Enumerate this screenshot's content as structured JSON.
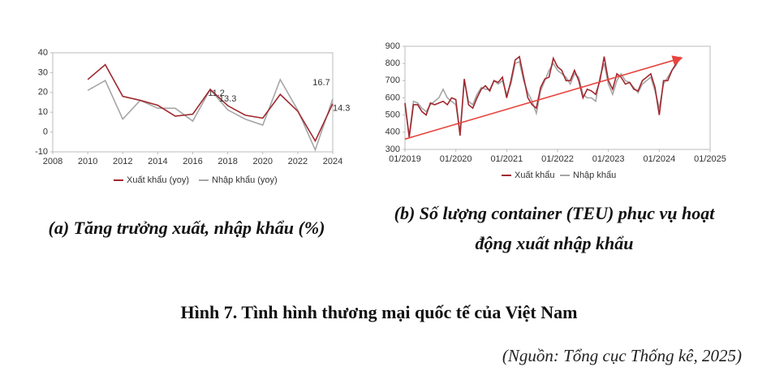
{
  "chart_data": [
    {
      "type": "line",
      "caption": "(a) Tăng trưởng xuất, nhập khẩu (%)",
      "x": [
        2010,
        2011,
        2012,
        2013,
        2014,
        2015,
        2016,
        2017,
        2018,
        2019,
        2020,
        2021,
        2022,
        2023,
        2024
      ],
      "series": [
        {
          "name": "Xuất khẩu (yoy)",
          "color": "#a0282e",
          "values": [
            26.5,
            34,
            18,
            16,
            13.5,
            8,
            9,
            21.5,
            13.3,
            8.5,
            7,
            19,
            10.5,
            -4.5,
            14.3
          ]
        },
        {
          "name": "Nhập khẩu (yoy)",
          "color": "#a6a6a6",
          "values": [
            21,
            26,
            6.5,
            16,
            12,
            12,
            5.5,
            21.5,
            11.2,
            6.5,
            3.5,
            26.5,
            11,
            -9,
            16.7
          ]
        }
      ],
      "data_labels_at": [
        2018,
        2024
      ],
      "xlim": [
        2008,
        2024
      ],
      "xticks": [
        2008,
        2010,
        2012,
        2014,
        2016,
        2018,
        2020,
        2022,
        2024
      ],
      "ylim": [
        -10,
        40
      ],
      "yticks": [
        -10,
        0,
        10,
        20,
        30,
        40
      ],
      "grid": false
    },
    {
      "type": "line",
      "caption": "(b) Số lượng container (TEU) phục vụ hoạt động xuất nhập khẩu",
      "x": [
        "01/2019",
        "02/2019",
        "03/2019",
        "04/2019",
        "05/2019",
        "06/2019",
        "07/2019",
        "08/2019",
        "09/2019",
        "10/2019",
        "11/2019",
        "12/2019",
        "01/2020",
        "02/2020",
        "03/2020",
        "04/2020",
        "05/2020",
        "06/2020",
        "07/2020",
        "08/2020",
        "09/2020",
        "10/2020",
        "11/2020",
        "12/2020",
        "01/2021",
        "02/2021",
        "03/2021",
        "04/2021",
        "05/2021",
        "06/2021",
        "07/2021",
        "08/2021",
        "09/2021",
        "10/2021",
        "11/2021",
        "12/2021",
        "01/2022",
        "02/2022",
        "03/2022",
        "04/2022",
        "05/2022",
        "06/2022",
        "07/2022",
        "08/2022",
        "09/2022",
        "10/2022",
        "11/2022",
        "12/2022",
        "01/2023",
        "02/2023",
        "03/2023",
        "04/2023",
        "05/2023",
        "06/2023",
        "07/2023",
        "08/2023",
        "09/2023",
        "10/2023",
        "11/2023",
        "12/2023",
        "01/2024",
        "02/2024",
        "03/2024",
        "04/2024",
        "05/2024",
        "06/2024"
      ],
      "series": [
        {
          "name": "Xuất khẩu",
          "color": "#a0282e",
          "values": [
            570,
            370,
            560,
            560,
            520,
            500,
            570,
            560,
            570,
            580,
            560,
            600,
            590,
            380,
            710,
            560,
            540,
            600,
            650,
            670,
            640,
            700,
            690,
            720,
            600,
            700,
            820,
            840,
            720,
            600,
            560,
            540,
            660,
            710,
            720,
            830,
            780,
            760,
            700,
            700,
            760,
            700,
            600,
            650,
            640,
            620,
            700,
            840,
            700,
            650,
            740,
            720,
            680,
            690,
            650,
            640,
            700,
            720,
            740,
            660,
            500,
            700,
            700,
            760,
            800,
            830
          ]
        },
        {
          "name": "Nhập khẩu",
          "color": "#a6a6a6",
          "values": [
            560,
            380,
            580,
            570,
            540,
            520,
            560,
            580,
            600,
            650,
            600,
            580,
            560,
            400,
            700,
            580,
            560,
            620,
            660,
            650,
            650,
            700,
            680,
            700,
            620,
            680,
            800,
            810,
            700,
            630,
            580,
            510,
            640,
            700,
            760,
            800,
            760,
            740,
            720,
            680,
            740,
            720,
            620,
            600,
            600,
            580,
            720,
            800,
            680,
            620,
            700,
            740,
            700,
            690,
            660,
            630,
            680,
            700,
            720,
            640,
            540,
            680,
            720,
            760,
            790,
            840
          ]
        }
      ],
      "trend": {
        "color": "#e8433c",
        "x": [
          "01/2019",
          "06/2024"
        ],
        "values": [
          360,
          830
        ]
      },
      "xlim": [
        "01/2019",
        "01/2025"
      ],
      "xticks": [
        "01/2019",
        "01/2020",
        "01/2021",
        "01/2022",
        "01/2023",
        "01/2024",
        "01/2025"
      ],
      "ylim": [
        300,
        900
      ],
      "yticks": [
        300,
        400,
        500,
        600,
        700,
        800,
        900
      ],
      "grid": false
    }
  ],
  "figure_title": "Hình 7. Tình hình thương mại quốc tế của Việt Nam",
  "source": "(Nguồn: Tổng cục Thống kê, 2025)"
}
